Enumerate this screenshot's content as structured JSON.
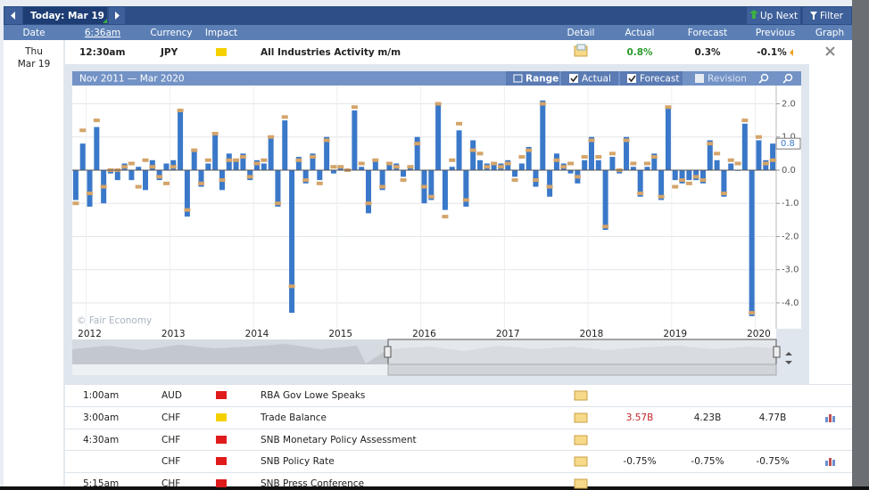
{
  "toolbar": {
    "today": "Today: Mar 19",
    "up_next": "Up Next",
    "filter": "Filter"
  },
  "columns": [
    "Date",
    "6:36am",
    "Currency",
    "Impact",
    "Detail",
    "Actual",
    "Forecast",
    "Previous",
    "Graph"
  ],
  "date": {
    "weekday": "Thu",
    "day": "Mar 19"
  },
  "main_event": {
    "time": "12:30am",
    "currency": "JPY",
    "impact_color": "#f5d000",
    "event": "All Industries Activity m/m",
    "actual": "0.8%",
    "forecast": "0.3%",
    "previous": "-0.1%"
  },
  "chart_data": {
    "type": "bar",
    "title": "Nov 2011 — Mar 2020",
    "range_button": "Range",
    "revision": "Revision",
    "watermark": "© Fair Economy",
    "categories": [
      null,
      null,
      "2012",
      null,
      null,
      null,
      null,
      null,
      null,
      null,
      null,
      null,
      null,
      null,
      "2013",
      null,
      null,
      null,
      null,
      null,
      null,
      null,
      null,
      null,
      null,
      null,
      "2014",
      null,
      null,
      null,
      null,
      null,
      null,
      null,
      null,
      null,
      null,
      null,
      "2015",
      null,
      null,
      null,
      null,
      null,
      null,
      null,
      null,
      null,
      null,
      null,
      "2016",
      null,
      null,
      null,
      null,
      null,
      null,
      null,
      null,
      null,
      null,
      null,
      "2017",
      null,
      null,
      null,
      null,
      null,
      null,
      null,
      null,
      null,
      null,
      null,
      "2018",
      null,
      null,
      null,
      null,
      null,
      null,
      null,
      null,
      null,
      null,
      null,
      "2019",
      null,
      null,
      null,
      null,
      null,
      null,
      null,
      null,
      null,
      null,
      null,
      "2020",
      null,
      null
    ],
    "series": [
      {
        "name": "Actual",
        "color": "#3a78c9",
        "values": [
          -0.9,
          0.8,
          -1.1,
          1.3,
          -1.0,
          -0.1,
          -0.3,
          0.2,
          -0.3,
          0.1,
          -0.6,
          0.3,
          -0.3,
          0.2,
          0.3,
          1.8,
          -1.4,
          0.6,
          -0.5,
          0.2,
          1.1,
          -0.6,
          0.5,
          0.3,
          0.5,
          -0.3,
          0.3,
          0.2,
          1.0,
          -1.1,
          1.5,
          -4.3,
          0.4,
          -0.4,
          0.5,
          -0.3,
          1.0,
          -0.1,
          0.1,
          0.0,
          1.8,
          0.1,
          -1.3,
          0.3,
          -0.6,
          0.2,
          0.2,
          -0.2,
          0.1,
          1.0,
          -1.0,
          -0.9,
          2.0,
          -1.2,
          0.1,
          1.2,
          -1.1,
          0.9,
          0.3,
          0.2,
          0.2,
          0.2,
          0.3,
          -0.2,
          0.2,
          0.7,
          -0.5,
          2.1,
          -0.8,
          0.5,
          0.2,
          -0.1,
          -0.4,
          0.3,
          1.0,
          0.3,
          -1.8,
          0.4,
          -0.1,
          1.0,
          0.1,
          -0.8,
          0.1,
          0.5,
          -0.9,
          1.9,
          -0.3,
          -0.4,
          -0.3,
          -0.3,
          -0.4,
          0.9,
          0.3,
          -0.8,
          0.2,
          0.0,
          1.4,
          -4.4,
          0.9,
          0.3,
          0.8
        ]
      },
      {
        "name": "Forecast",
        "color": "#d4a46a",
        "values": [
          -1.0,
          1.2,
          -0.7,
          1.5,
          -0.5,
          0.0,
          0.0,
          0.1,
          0.2,
          -0.5,
          0.3,
          0.1,
          -0.2,
          -0.4,
          0.1,
          1.8,
          -1.2,
          0.6,
          -0.4,
          0.3,
          1.1,
          -0.3,
          0.3,
          0.3,
          0.4,
          -0.2,
          0.2,
          0.3,
          1.0,
          -1.0,
          1.6,
          -3.5,
          0.3,
          -0.3,
          0.4,
          -0.4,
          0.9,
          0.1,
          0.1,
          0.0,
          1.9,
          0.2,
          -1.0,
          0.3,
          -0.5,
          0.2,
          0.1,
          -0.3,
          0.1,
          0.8,
          -0.5,
          -0.8,
          2.0,
          -1.4,
          0.3,
          1.4,
          -0.9,
          0.6,
          0.5,
          0.1,
          0.2,
          0.1,
          0.2,
          -0.3,
          0.4,
          0.6,
          -0.3,
          2.0,
          -0.5,
          0.3,
          0.1,
          0.2,
          -0.2,
          0.4,
          0.9,
          0.4,
          -1.7,
          0.5,
          0.0,
          0.9,
          0.2,
          -0.7,
          0.2,
          0.4,
          -0.8,
          1.9,
          -0.5,
          -0.3,
          -0.4,
          -0.2,
          -0.3,
          0.8,
          0.5,
          -0.7,
          0.3,
          0.2,
          1.5,
          -4.3,
          1.0,
          0.2,
          0.3
        ]
      }
    ],
    "ylim": [
      -4.78,
      2.55
    ],
    "yticks": [
      {
        "value": 2,
        "label": "2.0"
      },
      {
        "value": 1,
        "label": "1.0"
      },
      {
        "value": 0,
        "label": "0.0"
      },
      {
        "value": -1,
        "label": "-1.0"
      },
      {
        "value": -2,
        "label": "-2.0"
      },
      {
        "value": -3,
        "label": "-3.0"
      },
      {
        "value": -4,
        "label": "-4.0"
      }
    ],
    "grid": true
  },
  "rows": [
    {
      "time": "1:00am",
      "currency": "AUD",
      "impact_color": "#e01b1b",
      "event": "RBA Gov Lowe Speaks"
    },
    {
      "time": "3:00am",
      "currency": "CHF",
      "impact_color": "#f5d000",
      "event": "Trade Balance",
      "actual": "3.57B",
      "forecast": "4.23B",
      "previous": "4.77B"
    },
    {
      "time": "4:30am",
      "currency": "CHF",
      "impact_color": "#e01b1b",
      "event": "SNB Monetary Policy Assessment"
    },
    {
      "currency": "CHF",
      "impact_color": "#e01b1b",
      "event": "SNB Policy Rate",
      "actual": "-0.75%",
      "forecast": "-0.75%",
      "previous": "-0.75%"
    },
    {
      "time": "5:15am",
      "currency": "CHF",
      "impact_color": "#e01b1b",
      "event": "SNB Press Conference"
    }
  ]
}
